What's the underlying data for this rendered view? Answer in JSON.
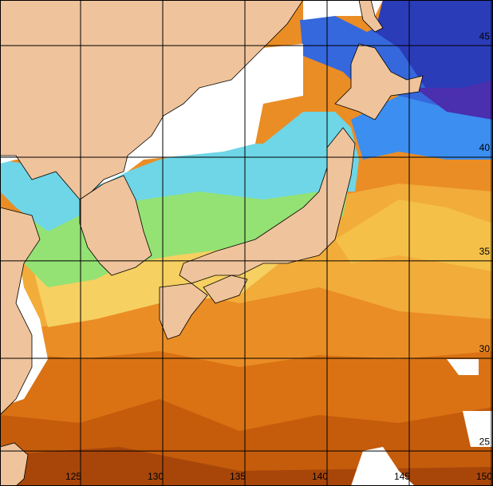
{
  "map": {
    "lon_labels": [
      "125",
      "130",
      "135",
      "140",
      "145",
      "150"
    ],
    "lat_labels": [
      "25",
      "30",
      "35",
      "40",
      "45"
    ]
  }
}
